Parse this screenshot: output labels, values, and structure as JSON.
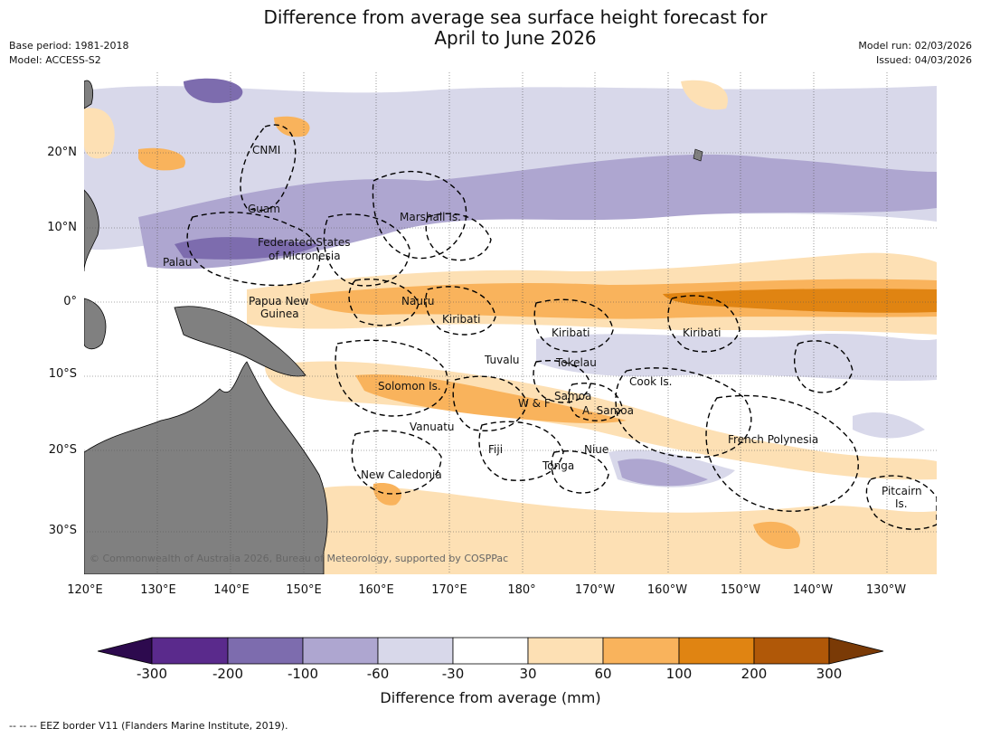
{
  "title_line1": "Difference from average sea surface height forecast for",
  "title_line2": "April to June 2026",
  "meta_left": {
    "base_period": "Base period: 1981-2018",
    "model": "Model: ACCESS-S2"
  },
  "meta_right": {
    "model_run": "Model run: 02/03/2026",
    "issued": "Issued: 04/03/2026"
  },
  "lat_labels": [
    "20°N",
    "10°N",
    "0°",
    "10°S",
    "20°S",
    "30°S"
  ],
  "lon_labels": [
    "120°E",
    "130°E",
    "140°E",
    "150°E",
    "160°E",
    "170°E",
    "180°",
    "170°W",
    "160°W",
    "150°W",
    "140°W",
    "130°W"
  ],
  "places": {
    "cnmi": "CNMI",
    "guam": "Guam",
    "marshall": "Marshall Is.",
    "fsm1": "Federated States",
    "fsm2": "of Micronesia",
    "palau": "Palau",
    "png1": "Papua New",
    "png2": "Guinea",
    "nauru": "Nauru",
    "kiribati_w": "Kiribati",
    "kiribati_c": "Kiribati",
    "kiribati_e": "Kiribati",
    "tuvalu": "Tuvalu",
    "tokelau": "Tokelau",
    "cook": "Cook Is.",
    "solomon": "Solomon Is.",
    "samoa": "Samoa",
    "wf": "W & F",
    "asamoa": "A. Samoa",
    "vanuatu": "Vanuatu",
    "fiji": "Fiji",
    "niue": "Niue",
    "tonga": "Tonga",
    "fp": "French Polynesia",
    "newcal": "New Caledonia",
    "pitcairn1": "Pitcairn",
    "pitcairn2": "Is."
  },
  "copyright": "© Commonwealth of Australia 2026, Bureau of Meteorology, supported by COSPPac",
  "colorbar": {
    "ticks": [
      "-300",
      "-200",
      "-100",
      "-60",
      "-30",
      "30",
      "60",
      "100",
      "200",
      "300"
    ],
    "colors": [
      "#2d0a4e",
      "#5a2a8c",
      "#7d6cae",
      "#aea6d0",
      "#d8d8ea",
      "#ffffff",
      "#fde0b4",
      "#f9b35c",
      "#e08412",
      "#b05808",
      "#7a3a06"
    ],
    "label": "Difference from average (mm)"
  },
  "colors": {
    "land": "#808080",
    "pos_light": "#fde0b4",
    "pos_mid": "#f9b35c",
    "pos_strong": "#e08412",
    "neg_light": "#d8d8ea",
    "neg_mid": "#aea6d0",
    "neg_strong": "#7d6cae"
  },
  "footnote": "--  --  -- EEZ border V11 (Flanders Marine Institute, 2019)."
}
